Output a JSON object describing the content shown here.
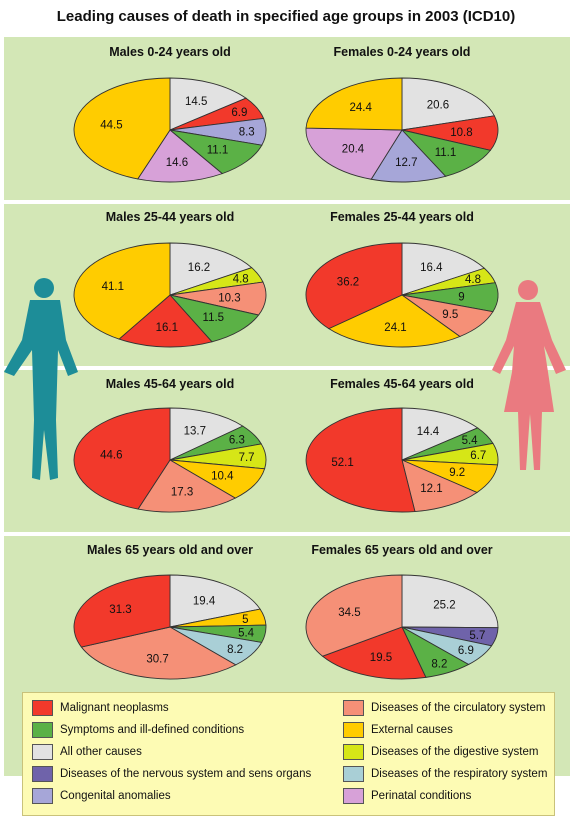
{
  "title": "Leading causes of death in specified age groups in 2003 (ICD10)",
  "colors": {
    "Malignant neoplasms": "#f2392b",
    "Diseases of the circulatory system": "#f59077",
    "Symptoms and ill-defined conditions": "#5bb146",
    "External causes": "#ffcc00",
    "All other causes": "#e2e2e2",
    "Diseases of the digestive system": "#d6e617",
    "Diseases of the nervous system and sens organs": "#6f63aa",
    "Diseases of the respiratory system": "#a9cfd6",
    "Congenital anomalies": "#a6a6d8",
    "Perinatal conditions": "#d7a1d8"
  },
  "legend": [
    "Malignant neoplasms",
    "Diseases of the circulatory system",
    "Symptoms and ill-defined conditions",
    "External causes",
    "All other causes",
    "Diseases of the digestive system",
    "Diseases of the nervous system and sens organs",
    "Diseases of the respiratory system",
    "Congenital anomalies",
    "Perinatal conditions"
  ],
  "chart_data": [
    {
      "type": "pie",
      "title": "Males 0-24 years old",
      "slices": [
        {
          "category": "All other causes",
          "value": 14.5
        },
        {
          "category": "Malignant neoplasms",
          "value": 6.9
        },
        {
          "category": "Congenital anomalies",
          "value": 8.3
        },
        {
          "category": "Symptoms and ill-defined conditions",
          "value": 11.1
        },
        {
          "category": "Perinatal conditions",
          "value": 14.6
        },
        {
          "category": "External causes",
          "value": 44.5
        }
      ]
    },
    {
      "type": "pie",
      "title": "Females 0-24 years old",
      "slices": [
        {
          "category": "All other causes",
          "value": 20.6
        },
        {
          "category": "Malignant neoplasms",
          "value": 10.8
        },
        {
          "category": "Symptoms and ill-defined conditions",
          "value": 11.1
        },
        {
          "category": "Congenital anomalies",
          "value": 12.7
        },
        {
          "category": "Perinatal conditions",
          "value": 20.4
        },
        {
          "category": "External causes",
          "value": 24.4
        }
      ]
    },
    {
      "type": "pie",
      "title": "Males 25-44 years old",
      "slices": [
        {
          "category": "All other causes",
          "value": 16.2
        },
        {
          "category": "Diseases of the digestive system",
          "value": 4.8
        },
        {
          "category": "Diseases of the circulatory system",
          "value": 10.3
        },
        {
          "category": "Symptoms and ill-defined conditions",
          "value": 11.5
        },
        {
          "category": "Malignant neoplasms",
          "value": 16.1
        },
        {
          "category": "External causes",
          "value": 41.1
        }
      ]
    },
    {
      "type": "pie",
      "title": "Females 25-44 years old",
      "slices": [
        {
          "category": "All other causes",
          "value": 16.4
        },
        {
          "category": "Diseases of the digestive system",
          "value": 4.8
        },
        {
          "category": "Symptoms and ill-defined conditions",
          "value": 9
        },
        {
          "category": "Diseases of the circulatory system",
          "value": 9.5
        },
        {
          "category": "External causes",
          "value": 24.1
        },
        {
          "category": "Malignant neoplasms",
          "value": 36.2
        }
      ]
    },
    {
      "type": "pie",
      "title": "Males 45-64 years old",
      "slices": [
        {
          "category": "All other causes",
          "value": 13.7
        },
        {
          "category": "Symptoms and ill-defined conditions",
          "value": 6.3
        },
        {
          "category": "Diseases of the digestive system",
          "value": 7.7
        },
        {
          "category": "External causes",
          "value": 10.4
        },
        {
          "category": "Diseases of the circulatory system",
          "value": 17.3
        },
        {
          "category": "Malignant neoplasms",
          "value": 44.6
        }
      ]
    },
    {
      "type": "pie",
      "title": "Females 45-64 years old",
      "slices": [
        {
          "category": "All other causes",
          "value": 14.4
        },
        {
          "category": "Symptoms and ill-defined conditions",
          "value": 5.4
        },
        {
          "category": "Diseases of the digestive system",
          "value": 6.7
        },
        {
          "category": "External causes",
          "value": 9.2
        },
        {
          "category": "Diseases of the circulatory system",
          "value": 12.1
        },
        {
          "category": "Malignant neoplasms",
          "value": 52.1
        }
      ]
    },
    {
      "type": "pie",
      "title": "Males 65 years old and over",
      "slices": [
        {
          "category": "All other causes",
          "value": 19.4
        },
        {
          "category": "External causes",
          "value": 5
        },
        {
          "category": "Symptoms and ill-defined conditions",
          "value": 5.4
        },
        {
          "category": "Diseases of the respiratory system",
          "value": 8.2
        },
        {
          "category": "Diseases of the circulatory system",
          "value": 30.7
        },
        {
          "category": "Malignant neoplasms",
          "value": 31.3
        }
      ]
    },
    {
      "type": "pie",
      "title": "Females 65 years old and over",
      "slices": [
        {
          "category": "All other causes",
          "value": 25.2
        },
        {
          "category": "Diseases of the nervous system and sens organs",
          "value": 5.7
        },
        {
          "category": "Diseases of the respiratory system",
          "value": 6.9
        },
        {
          "category": "Symptoms and ill-defined conditions",
          "value": 8.2
        },
        {
          "category": "Malignant neoplasms",
          "value": 19.5
        },
        {
          "category": "Diseases of the circulatory system",
          "value": 34.5
        }
      ]
    }
  ]
}
